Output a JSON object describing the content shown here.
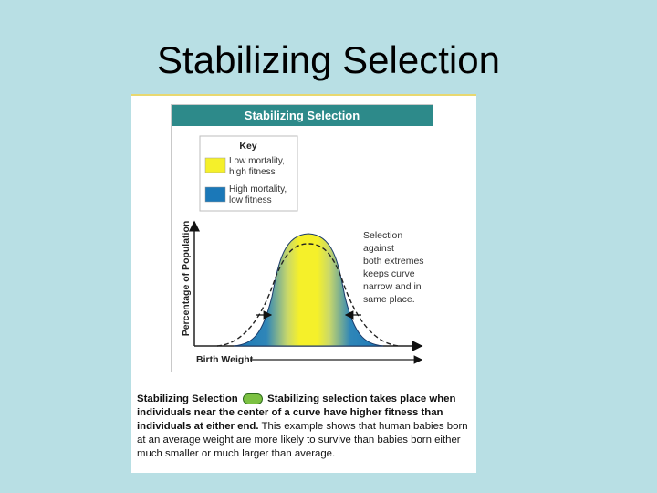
{
  "slide": {
    "title": "Stabilizing Selection"
  },
  "figure": {
    "header": "Stabilizing Selection",
    "key": {
      "title": "Key",
      "items": [
        {
          "label_line1": "Low mortality,",
          "label_line2": "high fitness",
          "color": "#f5f02a"
        },
        {
          "label_line1": "High mortality,",
          "label_line2": "low fitness",
          "color": "#1b78b8"
        }
      ]
    },
    "ylabel": "Percentage of Population",
    "xlabel": "Birth Weight",
    "annotation": [
      "Selection",
      "against",
      "both extremes",
      "keeps curve",
      "narrow and in",
      "same place."
    ]
  },
  "caption": {
    "heading": "Stabilizing Selection",
    "bold_text": "Stabilizing selection takes place when individuals near the center of a curve have higher fitness than individuals at either end.",
    "normal_text": "This example shows that human babies born at an average weight are more likely to survive than babies born either much smaller or much larger than average."
  },
  "colors": {
    "header": "#2d8a8a",
    "background": "#b8dfe4",
    "yellow": "#f5f02a",
    "blue": "#1b78b8"
  }
}
